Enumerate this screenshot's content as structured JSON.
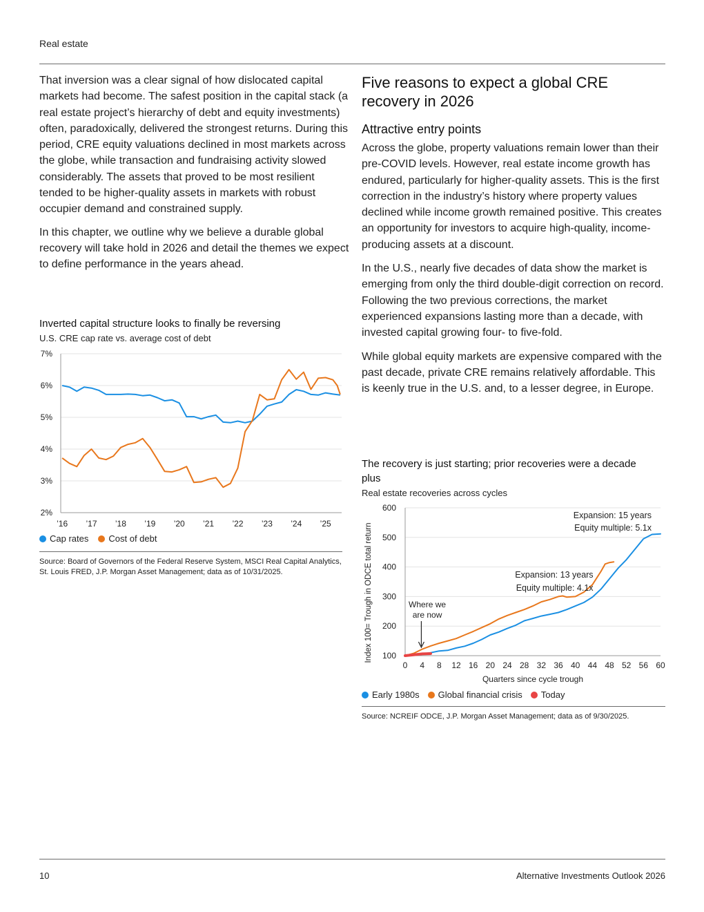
{
  "header": {
    "section": "Real estate"
  },
  "left": {
    "paragraphs": [
      "That inversion was a clear signal of how dislocated capital markets had become. The safest position in the capital stack (a real estate project’s hierarchy of debt and equity investments) often, paradoxically, delivered the strongest returns. During this period, CRE equity valuations declined in most markets across the globe, while transaction and fundraising activity slowed considerably. The assets that proved to be most resilient tended to be higher-quality assets in markets with robust occupier demand and constrained supply.",
      "In this chapter, we outline why we believe a durable global recovery will take hold in 2026 and detail the themes we expect to define performance in the years ahead."
    ]
  },
  "right": {
    "heading": "Five reasons to expect a global CRE recovery in 2026",
    "subheading": "Attractive entry points",
    "paragraphs": [
      "Across the globe, property valuations remain lower than their pre-COVID levels. However, real estate income growth has endured, particularly for higher-quality assets. This is the first correction in the industry’s history where property values declined while income growth remained positive. This creates an opportunity for investors to acquire high-quality, income-producing assets at a discount.",
      "In the U.S., nearly five decades of data show the market is emerging from only the third double-digit correction on record. Following the two previous corrections, the market experienced expansions lasting more than a decade, with invested capital growing four- to five-fold.",
      "While global equity markets are expensive compared with the past decade, private CRE remains relatively affordable. This is keenly true in the U.S. and, to a lesser degree, in Europe."
    ]
  },
  "chart_data": [
    {
      "type": "line",
      "title": "Inverted capital structure looks to finally be reversing",
      "subtitle": "U.S. CRE cap rate vs. average cost of debt",
      "ylim": [
        2,
        7
      ],
      "xlim": [
        2015.95,
        2025.55
      ],
      "yticks": [
        "2%",
        "3%",
        "4%",
        "5%",
        "6%",
        "7%"
      ],
      "xticks": [
        {
          "x": 2016,
          "label": "’16"
        },
        {
          "x": 2017,
          "label": "’17"
        },
        {
          "x": 2018,
          "label": "’18"
        },
        {
          "x": 2019,
          "label": "’19"
        },
        {
          "x": 2020,
          "label": "’20"
        },
        {
          "x": 2021,
          "label": "’21"
        },
        {
          "x": 2022,
          "label": "’22"
        },
        {
          "x": 2023,
          "label": "’23"
        },
        {
          "x": 2024,
          "label": "’24"
        },
        {
          "x": 2025,
          "label": "’25"
        }
      ],
      "grid": "horizontal",
      "legend_position": "bottom-left",
      "series": [
        {
          "name": "Cap rates",
          "color": "#1a8fe3",
          "points": [
            [
              2016,
              6.0
            ],
            [
              2016.25,
              5.95
            ],
            [
              2016.5,
              5.82
            ],
            [
              2016.75,
              5.95
            ],
            [
              2017,
              5.92
            ],
            [
              2017.25,
              5.85
            ],
            [
              2017.5,
              5.72
            ],
            [
              2017.75,
              5.72
            ],
            [
              2018,
              5.72
            ],
            [
              2018.25,
              5.73
            ],
            [
              2018.5,
              5.72
            ],
            [
              2018.75,
              5.68
            ],
            [
              2019,
              5.7
            ],
            [
              2019.25,
              5.62
            ],
            [
              2019.5,
              5.52
            ],
            [
              2019.75,
              5.55
            ],
            [
              2020,
              5.45
            ],
            [
              2020.25,
              5.02
            ],
            [
              2020.5,
              5.02
            ],
            [
              2020.75,
              4.95
            ],
            [
              2021,
              5.02
            ],
            [
              2021.25,
              5.07
            ],
            [
              2021.5,
              4.85
            ],
            [
              2021.75,
              4.83
            ],
            [
              2022,
              4.88
            ],
            [
              2022.25,
              4.83
            ],
            [
              2022.5,
              4.88
            ],
            [
              2022.75,
              5.1
            ],
            [
              2023,
              5.35
            ],
            [
              2023.25,
              5.42
            ],
            [
              2023.5,
              5.48
            ],
            [
              2023.75,
              5.72
            ],
            [
              2024,
              5.87
            ],
            [
              2024.25,
              5.82
            ],
            [
              2024.5,
              5.72
            ],
            [
              2024.75,
              5.7
            ],
            [
              2025,
              5.77
            ],
            [
              2025.25,
              5.73
            ],
            [
              2025.5,
              5.7
            ]
          ]
        },
        {
          "name": "Cost of debt",
          "color": "#e8771c",
          "points": [
            [
              2016,
              3.72
            ],
            [
              2016.25,
              3.55
            ],
            [
              2016.5,
              3.45
            ],
            [
              2016.75,
              3.8
            ],
            [
              2017,
              4.0
            ],
            [
              2017.25,
              3.72
            ],
            [
              2017.5,
              3.67
            ],
            [
              2017.75,
              3.78
            ],
            [
              2018,
              4.05
            ],
            [
              2018.25,
              4.15
            ],
            [
              2018.5,
              4.2
            ],
            [
              2018.75,
              4.33
            ],
            [
              2019,
              4.05
            ],
            [
              2019.25,
              3.68
            ],
            [
              2019.5,
              3.3
            ],
            [
              2019.75,
              3.28
            ],
            [
              2020,
              3.35
            ],
            [
              2020.25,
              3.45
            ],
            [
              2020.5,
              2.95
            ],
            [
              2020.75,
              2.97
            ],
            [
              2021,
              3.05
            ],
            [
              2021.25,
              3.1
            ],
            [
              2021.5,
              2.8
            ],
            [
              2021.75,
              2.92
            ],
            [
              2022,
              3.4
            ],
            [
              2022.25,
              4.55
            ],
            [
              2022.5,
              4.9
            ],
            [
              2022.75,
              5.72
            ],
            [
              2023,
              5.55
            ],
            [
              2023.25,
              5.58
            ],
            [
              2023.5,
              6.18
            ],
            [
              2023.75,
              6.5
            ],
            [
              2024,
              6.2
            ],
            [
              2024.25,
              6.42
            ],
            [
              2024.5,
              5.88
            ],
            [
              2024.75,
              6.23
            ],
            [
              2025,
              6.25
            ],
            [
              2025.25,
              6.18
            ],
            [
              2025.4,
              6.0
            ],
            [
              2025.5,
              5.72
            ]
          ]
        }
      ],
      "source": "Source: Board of Governors of the Federal Reserve System, MSCI Real Capital Analytics, St. Louis FRED, J.P. Morgan Asset Management; data as of 10/31/2025."
    },
    {
      "type": "line",
      "title": "The recovery is just starting; prior recoveries were a decade plus",
      "subtitle": "Real estate recoveries across cycles",
      "xlabel": "Quarters since cycle trough",
      "ylabel": "Index 100= Trough in ODCE total return",
      "ylim": [
        100,
        600
      ],
      "xlim": [
        0,
        60
      ],
      "yticks": [
        100,
        200,
        300,
        400,
        500,
        600
      ],
      "xticks": [
        0,
        4,
        8,
        12,
        16,
        20,
        24,
        28,
        32,
        36,
        40,
        44,
        48,
        52,
        56,
        60
      ],
      "grid": "horizontal",
      "legend_position": "bottom-left",
      "series": [
        {
          "name": "Early 1980s",
          "color": "#1a8fe3",
          "points": [
            [
              0,
              100
            ],
            [
              2,
              102
            ],
            [
              4,
              106
            ],
            [
              6,
              110
            ],
            [
              8,
              116
            ],
            [
              10,
              118
            ],
            [
              12,
              126
            ],
            [
              14,
              132
            ],
            [
              16,
              142
            ],
            [
              18,
              155
            ],
            [
              20,
              170
            ],
            [
              22,
              180
            ],
            [
              24,
              192
            ],
            [
              26,
              203
            ],
            [
              28,
              218
            ],
            [
              30,
              226
            ],
            [
              32,
              234
            ],
            [
              34,
              240
            ],
            [
              36,
              246
            ],
            [
              38,
              256
            ],
            [
              40,
              268
            ],
            [
              42,
              280
            ],
            [
              44,
              298
            ],
            [
              46,
              325
            ],
            [
              48,
              360
            ],
            [
              50,
              395
            ],
            [
              52,
              425
            ],
            [
              54,
              460
            ],
            [
              56,
              495
            ],
            [
              58,
              510
            ],
            [
              60,
              512
            ]
          ]
        },
        {
          "name": "Global financial crisis",
          "color": "#e8771c",
          "points": [
            [
              0,
              100
            ],
            [
              2,
              108
            ],
            [
              4,
              122
            ],
            [
              6,
              133
            ],
            [
              8,
              142
            ],
            [
              10,
              150
            ],
            [
              12,
              158
            ],
            [
              14,
              170
            ],
            [
              16,
              182
            ],
            [
              18,
              195
            ],
            [
              20,
              208
            ],
            [
              22,
              224
            ],
            [
              24,
              236
            ],
            [
              26,
              246
            ],
            [
              28,
              256
            ],
            [
              30,
              268
            ],
            [
              32,
              282
            ],
            [
              34,
              290
            ],
            [
              36,
              300
            ],
            [
              37,
              302
            ],
            [
              38,
              298
            ],
            [
              40,
              300
            ],
            [
              42,
              315
            ],
            [
              44,
              340
            ],
            [
              46,
              385
            ],
            [
              47,
              410
            ],
            [
              48,
              415
            ],
            [
              49,
              417
            ]
          ]
        },
        {
          "name": "Today",
          "color": "#e84444",
          "points": [
            [
              0,
              100
            ],
            [
              2,
              103
            ],
            [
              4,
              106
            ],
            [
              6,
              107
            ]
          ]
        }
      ],
      "annotations": [
        {
          "text_lines": [
            "Expansion: 15 years",
            "Equity multiple: 5.1x"
          ]
        },
        {
          "text_lines": [
            "Expansion: 13 years",
            "Equity multiple: 4.1x"
          ]
        },
        {
          "text_lines": [
            "Where we",
            "are now"
          ]
        }
      ],
      "source": "Source: NCREIF ODCE, J.P. Morgan Asset Management; data as of 9/30/2025."
    }
  ],
  "footer": {
    "page_number": "10",
    "publication": "Alternative Investments Outlook 2026"
  }
}
